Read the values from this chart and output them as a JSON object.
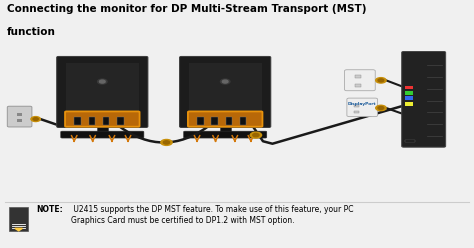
{
  "bg_color": "#f0f0f0",
  "title_line1": "Connecting the monitor for DP Multi-Stream Transport (MST)",
  "title_line2": "function",
  "title_fontsize": 7.5,
  "title_color": "#000000",
  "note_bold_text": "NOTE:",
  "note_text": " U2415 supports the DP MST feature. To make use of this feature, your PC\nGraphics Card must be certified to DP1.2 with MST option.",
  "note_fontsize": 5.5,
  "monitor_color": "#1c1c1c",
  "port_box_color": "#d4780a",
  "port_box_edge": "#e8920c",
  "cable_color": "#1a1a1a",
  "arrow_color": "#d4780a",
  "base_color": "#111111",
  "pc_dark": "#222222",
  "note_icon_color": "#2a2a2a",
  "connector_color": "#c8900a",
  "connector_inner": "#996600",
  "outlet_color": "#cccccc",
  "outlet_edge": "#999999",
  "dp_label_color": "#1a5a9a",
  "white": "#ffffff",
  "light_gray": "#e8e8e8",
  "m1x": 0.215,
  "m2x": 0.475,
  "my": 0.63,
  "mw": 0.185,
  "mh": 0.28,
  "pcx": 0.895,
  "pcy": 0.6,
  "pcw": 0.085,
  "pch": 0.38
}
